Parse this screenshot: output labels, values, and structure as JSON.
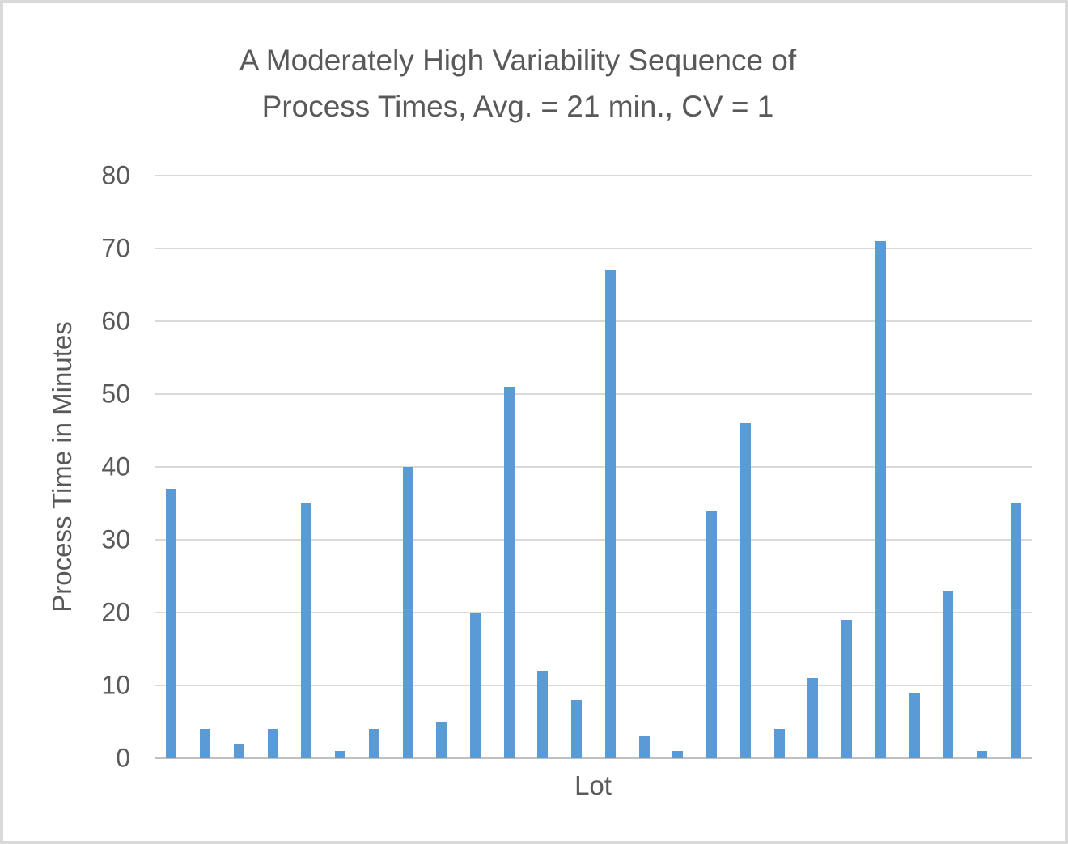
{
  "chart_data": {
    "type": "bar",
    "title_line1": "A Moderately High Variability Sequence of",
    "title_line2": "Process Times, Avg. = 21 min., CV = 1",
    "ylabel": "Process Time in Minutes",
    "xlabel": "Lot",
    "values": [
      37,
      4,
      2,
      4,
      35,
      1,
      4,
      40,
      5,
      20,
      51,
      12,
      8,
      67,
      3,
      1,
      34,
      46,
      4,
      11,
      19,
      71,
      9,
      23,
      1,
      35
    ],
    "yticks": [
      0,
      10,
      20,
      30,
      40,
      50,
      60,
      70,
      80
    ],
    "ylim": [
      0,
      80
    ],
    "grid": "horizontal",
    "legend": "none"
  },
  "colors": {
    "bar": "#5b9bd5",
    "text": "#595959",
    "gridline": "#d9d9d9",
    "axis_line": "#c0c0c0",
    "border": "#d9d9d9",
    "background": "#ffffff"
  }
}
